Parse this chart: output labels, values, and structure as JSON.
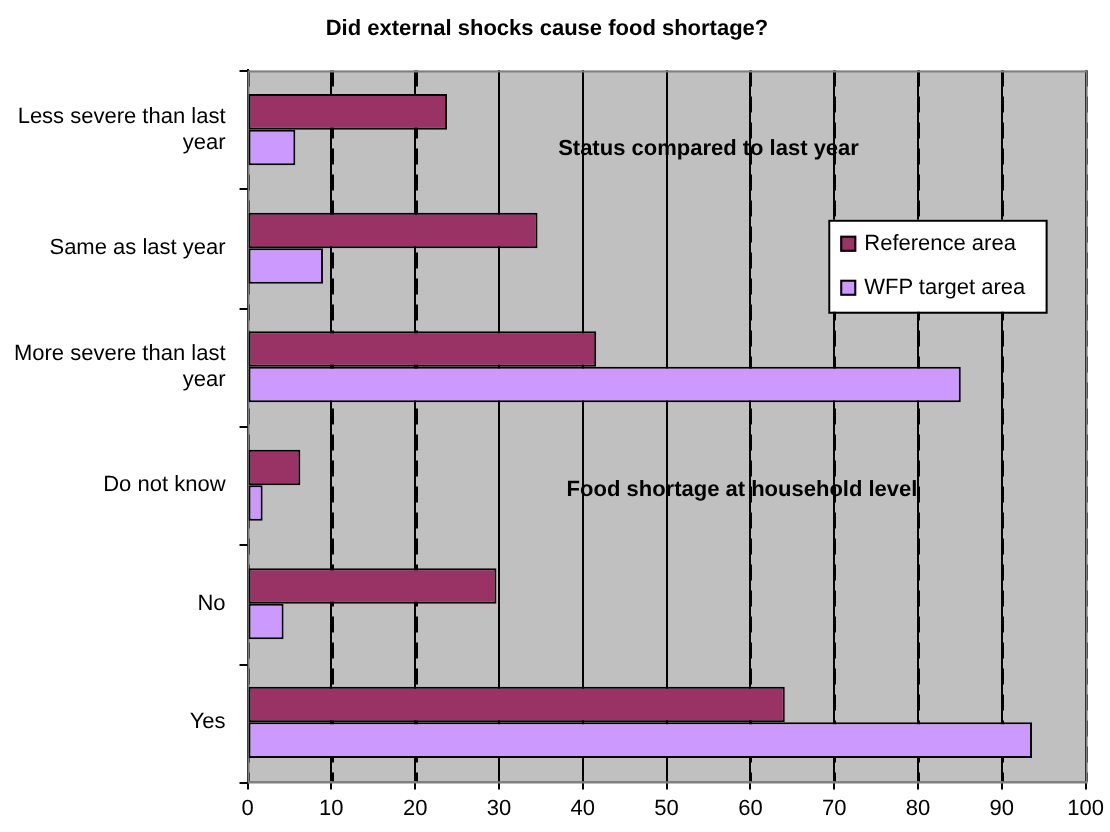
{
  "chart_data": {
    "type": "bar",
    "orientation": "horizontal",
    "title": "Did external shocks cause food shortage?",
    "categories": [
      "Less severe than last year",
      "Same as last year",
      "More severe than last year",
      "Do not know",
      "No",
      "Yes"
    ],
    "series": [
      {
        "name": "Reference area",
        "color": "#993366",
        "values": [
          23.8,
          34.6,
          41.6,
          6.3,
          29.7,
          64.1
        ]
      },
      {
        "name": "WFP target area",
        "color": "#cc99ff",
        "values": [
          5.7,
          9.0,
          85.1,
          1.8,
          4.3,
          93.6
        ]
      }
    ],
    "xlim": [
      0,
      100
    ],
    "xticks": [
      0,
      10,
      20,
      30,
      40,
      50,
      60,
      70,
      80,
      90,
      100
    ],
    "grid": "x",
    "legend": "right",
    "annotations": [
      "Status compared to last year",
      "Food shortage at household level"
    ]
  }
}
